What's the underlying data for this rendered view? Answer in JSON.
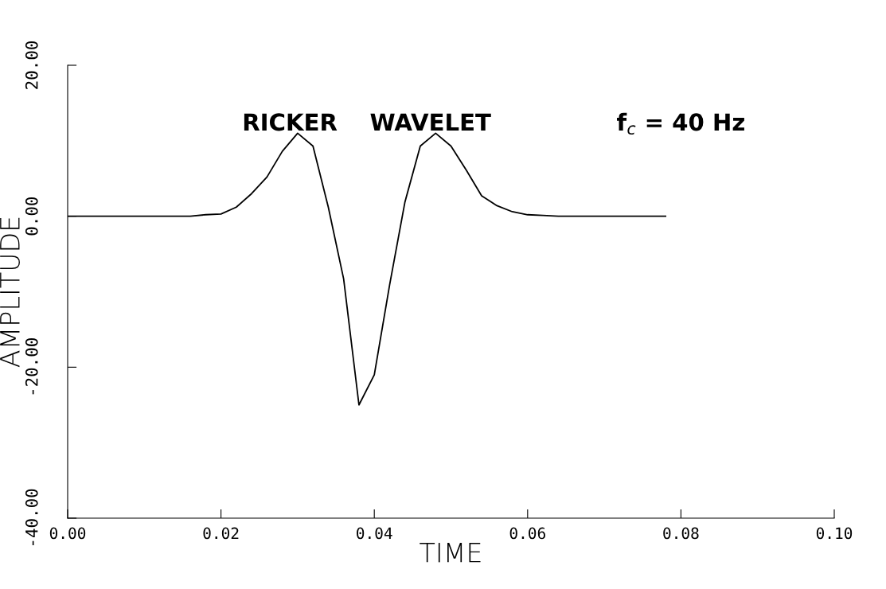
{
  "chart_data": {
    "type": "line",
    "title": "RICKER    WAVELET",
    "xlabel": "TIME",
    "ylabel": "AMPLITUDE",
    "annotations": [
      "f$_{c}$ = 40 Hz"
    ],
    "x": [
      0,
      0.002,
      0.004,
      0.006,
      0.008,
      0.01,
      0.012,
      0.014,
      0.016,
      0.018,
      0.02,
      0.022,
      0.024,
      0.026,
      0.028,
      0.03,
      0.032,
      0.034,
      0.036,
      0.038,
      0.04,
      0.042,
      0.044,
      0.046,
      0.048,
      0.05,
      0.052,
      0.054,
      0.056,
      0.058,
      0.06,
      0.062,
      0.064,
      0.066,
      0.068,
      0.07,
      0.072,
      0.074,
      0.076,
      0.078
    ],
    "series": [
      {
        "color": "#000000",
        "values": [
          0,
          0,
          0,
          0,
          0,
          0,
          0,
          0,
          0,
          0.2,
          0.3,
          1.2,
          3.0,
          5.2,
          8.6,
          11.0,
          9.3,
          1.2,
          -8.3,
          -25.0,
          -21.0,
          -9.1,
          1.9,
          9.3,
          11.0,
          9.3,
          6.1,
          2.7,
          1.4,
          0.6,
          0.2,
          0.1,
          0,
          0,
          0,
          0,
          0,
          0,
          0,
          0
        ]
      }
    ],
    "xlim": [
      0,
      0.1
    ],
    "xticks": [
      {
        "value": 0,
        "label": "0.00"
      },
      0.02,
      0.04,
      0.06,
      0.08,
      {
        "value": 0.1,
        "label": "0.10"
      }
    ],
    "ylim": [
      -40,
      20
    ],
    "yticks": [
      {
        "value": -40,
        "label": "-40.00"
      },
      {
        "value": -20,
        "label": "-20.00"
      },
      {
        "value": 0,
        "label": "0.00"
      },
      {
        "value": 20,
        "label": "20.00"
      }
    ],
    "grid": false,
    "legend": false,
    "marker": "none",
    "line_style": "solid"
  }
}
